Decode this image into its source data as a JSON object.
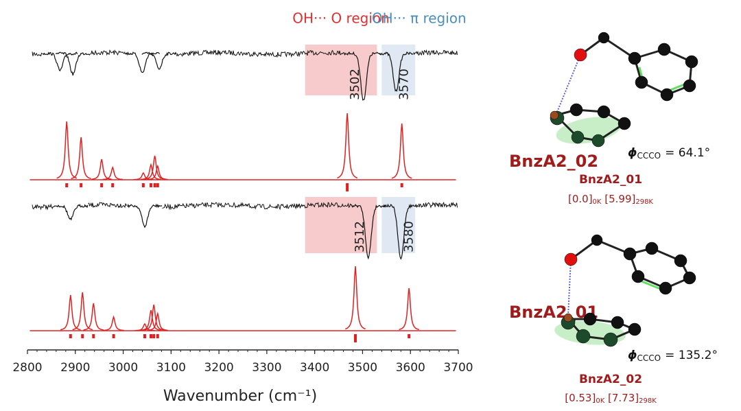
{
  "chart_data": {
    "type": "spectra",
    "xlabel": "Wavenumber (cm⁻¹)",
    "xlim": [
      2800,
      3700
    ],
    "xticks": [
      2800,
      2900,
      3000,
      3100,
      3200,
      3300,
      3400,
      3500,
      3600,
      3700
    ],
    "ylim": [
      0,
      100
    ],
    "regions": [
      {
        "label": "OH··· O region",
        "color": "#f0a0a0",
        "text_color": "#e03030",
        "range": [
          3380,
          3530
        ]
      },
      {
        "label": "OH··· π region",
        "color": "#c4d6ea",
        "text_color": "#4a8ec0",
        "range": [
          3540,
          3610
        ]
      }
    ],
    "panels": [
      {
        "kind": "experimental",
        "color": "#111111",
        "x": [
          2868,
          2895,
          3040,
          3075,
          3502,
          3570
        ],
        "values": [
          25,
          30,
          28,
          22,
          68,
          55
        ],
        "annotations": [
          3502,
          3570
        ]
      },
      {
        "kind": "calculated",
        "name": "BnzA2_02",
        "color": "#e02020",
        "x": [
          2882,
          2912,
          2955,
          2978,
          3042,
          3058,
          3066,
          3072,
          3468,
          3582
        ],
        "values": [
          85,
          62,
          30,
          18,
          10,
          22,
          35,
          20,
          97,
          82
        ]
      },
      {
        "kind": "experimental",
        "color": "#111111",
        "x": [
          2890,
          3045,
          3512,
          3580
        ],
        "values": [
          20,
          30,
          75,
          78
        ],
        "annotations": [
          3512,
          3580
        ]
      },
      {
        "kind": "calculated",
        "name": "BnzA2_01",
        "color": "#e02020",
        "x": [
          2890,
          2915,
          2938,
          2980,
          3045,
          3058,
          3064,
          3072,
          3485,
          3597
        ],
        "values": [
          52,
          56,
          40,
          20,
          10,
          30,
          38,
          25,
          94,
          62
        ]
      }
    ]
  },
  "structures": [
    {
      "phi": {
        "symbol": "ϕ",
        "sub": "CCCO",
        "value": "= 64.1°"
      },
      "name": "BnzA2_01",
      "energy": [
        "[0.0]",
        "0K",
        " [5.99]",
        "298K"
      ]
    },
    {
      "phi": {
        "symbol": "ϕ",
        "sub": "CCCO",
        "value": "= 135.2°"
      },
      "name": "BnzA2_02",
      "energy": [
        "[0.53]",
        "0K",
        " [7.73]",
        "298K"
      ]
    }
  ]
}
